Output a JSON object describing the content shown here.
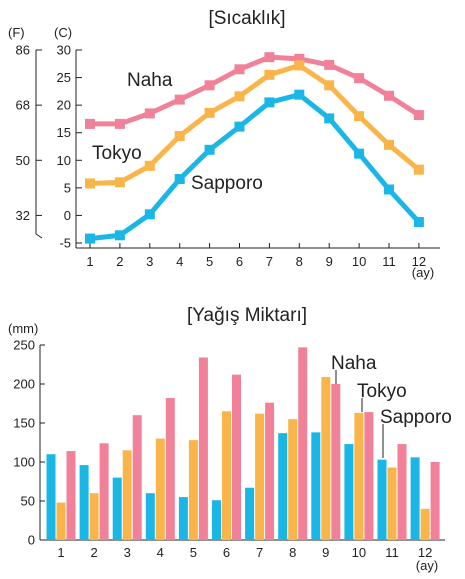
{
  "chart_data": [
    {
      "type": "line",
      "title": "[Sıcaklık]",
      "categories": [
        "1",
        "2",
        "3",
        "4",
        "5",
        "6",
        "7",
        "8",
        "9",
        "10",
        "11",
        "12"
      ],
      "xlabel": "(ay)",
      "ylabel": "(C)",
      "ylabel_secondary": "(F)",
      "ylim": [
        -5,
        30
      ],
      "yticks": [
        "-5",
        "0",
        "5",
        "10",
        "15",
        "20",
        "25",
        "30"
      ],
      "yticks_secondary": [
        {
          "label": "32",
          "celsius": 0
        },
        {
          "label": "50",
          "celsius": 10
        },
        {
          "label": "68",
          "celsius": 20
        },
        {
          "label": "86",
          "celsius": 30
        }
      ],
      "grid": false,
      "legend": "inline labels",
      "series": [
        {
          "name": "Naha",
          "color": "#f08199",
          "values": [
            16.6,
            16.6,
            18.5,
            21.0,
            23.6,
            26.5,
            28.7,
            28.4,
            27.3,
            24.9,
            21.7,
            18.2
          ]
        },
        {
          "name": "Tokyo",
          "color": "#f9b54a",
          "values": [
            5.8,
            6.0,
            9.0,
            14.4,
            18.6,
            21.6,
            25.5,
            27.2,
            23.6,
            18.0,
            12.8,
            8.3
          ]
        },
        {
          "name": "Sapporo",
          "color": "#1ab7e6",
          "values": [
            -4.2,
            -3.6,
            0.2,
            6.6,
            11.9,
            16.1,
            20.5,
            21.9,
            17.6,
            11.2,
            4.7,
            -1.2
          ]
        }
      ]
    },
    {
      "type": "bar",
      "title": "[Yağış Miktarı]",
      "categories": [
        "1",
        "2",
        "3",
        "4",
        "5",
        "6",
        "7",
        "8",
        "9",
        "10",
        "11",
        "12"
      ],
      "xlabel": "(ay)",
      "ylabel": "(mm)",
      "ylim": [
        0,
        250
      ],
      "yticks": [
        "0",
        "50",
        "100",
        "150",
        "200",
        "250"
      ],
      "grid": false,
      "legend": "inline labels",
      "series": [
        {
          "name": "Sapporo",
          "color": "#1ab7e6",
          "values": [
            110,
            96,
            80,
            60,
            55,
            51,
            67,
            137,
            138,
            123,
            103,
            106
          ]
        },
        {
          "name": "Tokyo",
          "color": "#f9b54a",
          "values": [
            48,
            60,
            115,
            130,
            128,
            165,
            162,
            155,
            209,
            163,
            93,
            40
          ]
        },
        {
          "name": "Naha",
          "color": "#f08199",
          "values": [
            114,
            124,
            160,
            182,
            234,
            212,
            176,
            247,
            200,
            164,
            123,
            100
          ]
        }
      ]
    }
  ]
}
